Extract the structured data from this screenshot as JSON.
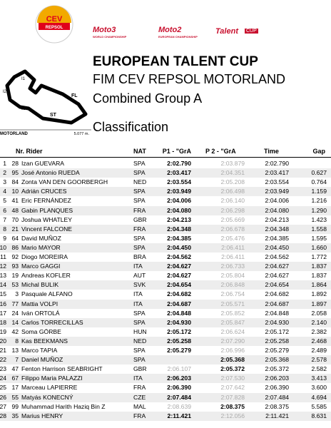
{
  "header": {
    "brands": [
      "CEV",
      "REPSOL",
      "Moto3",
      "WORLD CHAMPIONSHIP",
      "Moto2",
      "EUROPEAN CHAMPIONSHIP",
      "Talent",
      "CUP"
    ],
    "title": "EUROPEAN TALENT CUP",
    "subtitle": "FIM CEV REPSOL MOTORLAND",
    "group": "Combined Group A",
    "section": "Classification",
    "track": {
      "name": "MOTORLAND",
      "length": "5.077 m.",
      "labels": [
        "I1",
        "I2",
        "FL",
        "I3",
        "ST"
      ]
    }
  },
  "table": {
    "columns": [
      "Nr. Rider",
      "NAT",
      "P1 - \"GrA",
      "P 2 - \"GrA",
      "Time",
      "Gap"
    ],
    "rows": [
      [
        "1",
        "28",
        "Izan GUEVARA",
        "SPA",
        "2:02.790",
        "2:03.879",
        "2:02.790",
        null
      ],
      [
        "2",
        "95",
        "José Antonio RUEDA",
        "SPA",
        "2:03.417",
        "2:04.351",
        "2:03.417",
        "0.627"
      ],
      [
        "3",
        "84",
        "Zonta VAN DEN GOORBERGH",
        "NED",
        "2:03.554",
        "2:05.208",
        "2:03.554",
        "0.764"
      ],
      [
        "4",
        "10",
        "Adrián CRUCES",
        "SPA",
        "2:03.949",
        "2:06.498",
        "2:03.949",
        "1.159"
      ],
      [
        "5",
        "41",
        "Eric FERNÁNDEZ",
        "SPA",
        "2:04.006",
        "2:06.140",
        "2:04.006",
        "1.216"
      ],
      [
        "6",
        "48",
        "Gabin PLANQUES",
        "FRA",
        "2:04.080",
        "2:06.298",
        "2:04.080",
        "1.290"
      ],
      [
        "7",
        "70",
        "Joshua WHATLEY",
        "GBR",
        "2:04.213",
        "2:05.669",
        "2:04.213",
        "1.423"
      ],
      [
        "8",
        "21",
        "Vincent FALCONE",
        "FRA",
        "2:04.348",
        "2:06.678",
        "2:04.348",
        "1.558"
      ],
      [
        "9",
        "64",
        "David MUÑOZ",
        "SPA",
        "2:04.385",
        "2:05.476",
        "2:04.385",
        "1.595"
      ],
      [
        "10",
        "86",
        "Mario MAYOR",
        "SPA",
        "2:04.450",
        "2:06.411",
        "2:04.450",
        "1.660"
      ],
      [
        "11",
        "92",
        "Diogo MOREIRA",
        "BRA",
        "2:04.562",
        "2:06.411",
        "2:04.562",
        "1.772"
      ],
      [
        "12",
        "93",
        "Marco GAGGI",
        "ITA",
        "2:04.627",
        "2:06.733",
        "2:04.627",
        "1.837"
      ],
      [
        "13",
        "19",
        "Andreas KOFLER",
        "AUT",
        "2:04.627",
        "2:05.804",
        "2:04.627",
        "1.837"
      ],
      [
        "14",
        "53",
        "Michal BULIK",
        "SVK",
        "2:04.654",
        "2:06.848",
        "2:04.654",
        "1.864"
      ],
      [
        "15",
        "3",
        "Pasquale ALFANO",
        "ITA",
        "2:04.682",
        "2:06.754",
        "2:04.682",
        "1.892"
      ],
      [
        "16",
        "77",
        "Mattia VOLPI",
        "ITA",
        "2:04.687",
        "2:05.571",
        "2:04.687",
        "1.897"
      ],
      [
        "17",
        "24",
        "Iván ORTOLÁ",
        "SPA",
        "2:04.848",
        "2:05.852",
        "2:04.848",
        "2.058"
      ],
      [
        "18",
        "14",
        "Carlos TORRECILLAS",
        "SPA",
        "2:04.930",
        "2:05.847",
        "2:04.930",
        "2.140"
      ],
      [
        "19",
        "42",
        "Soma GÖRBE",
        "HUN",
        "2:05.172",
        "2:06.624",
        "2:05.172",
        "2.382"
      ],
      [
        "20",
        "8",
        "Kas BEEKMANS",
        "NED",
        "2:05.258",
        "2:07.290",
        "2:05.258",
        "2.468"
      ],
      [
        "21",
        "13",
        "Marco TAPIA",
        "SPA",
        "2:05.279",
        "2:06.996",
        "2:05.279",
        "2.489"
      ],
      [
        "22",
        "7",
        "Daniel MUÑOZ",
        "SPA",
        null,
        "2:05.368",
        "2:05.368",
        "2.578"
      ],
      [
        "23",
        "47",
        "Fenton Harrison SEABRIGHT",
        "GBR",
        "2:06.107",
        "2:05.372",
        "2:05.372",
        "2.582"
      ],
      [
        "24",
        "67",
        "Filippo Maria PALAZZI",
        "ITA",
        "2:06.203",
        "2:07.530",
        "2:06.203",
        "3.413"
      ],
      [
        "25",
        "17",
        "Marceau LAPIERRE",
        "FRA",
        "2:06.390",
        "2:07.642",
        "2:06.390",
        "3.600"
      ],
      [
        "26",
        "55",
        "Matyás KONECNÝ",
        "CZE",
        "2:07.484",
        "2:07.828",
        "2:07.484",
        "4.694"
      ],
      [
        "27",
        "99",
        "Muhammad Harith Haziq Bin Z",
        "MAL",
        "2:08.639",
        "2:08.375",
        "2:08.375",
        "5.585"
      ],
      [
        "28",
        "35",
        "Marius HENRY",
        "FRA",
        "2:11.421",
        "2:12.056",
        "2:11.421",
        "8.631"
      ]
    ]
  }
}
